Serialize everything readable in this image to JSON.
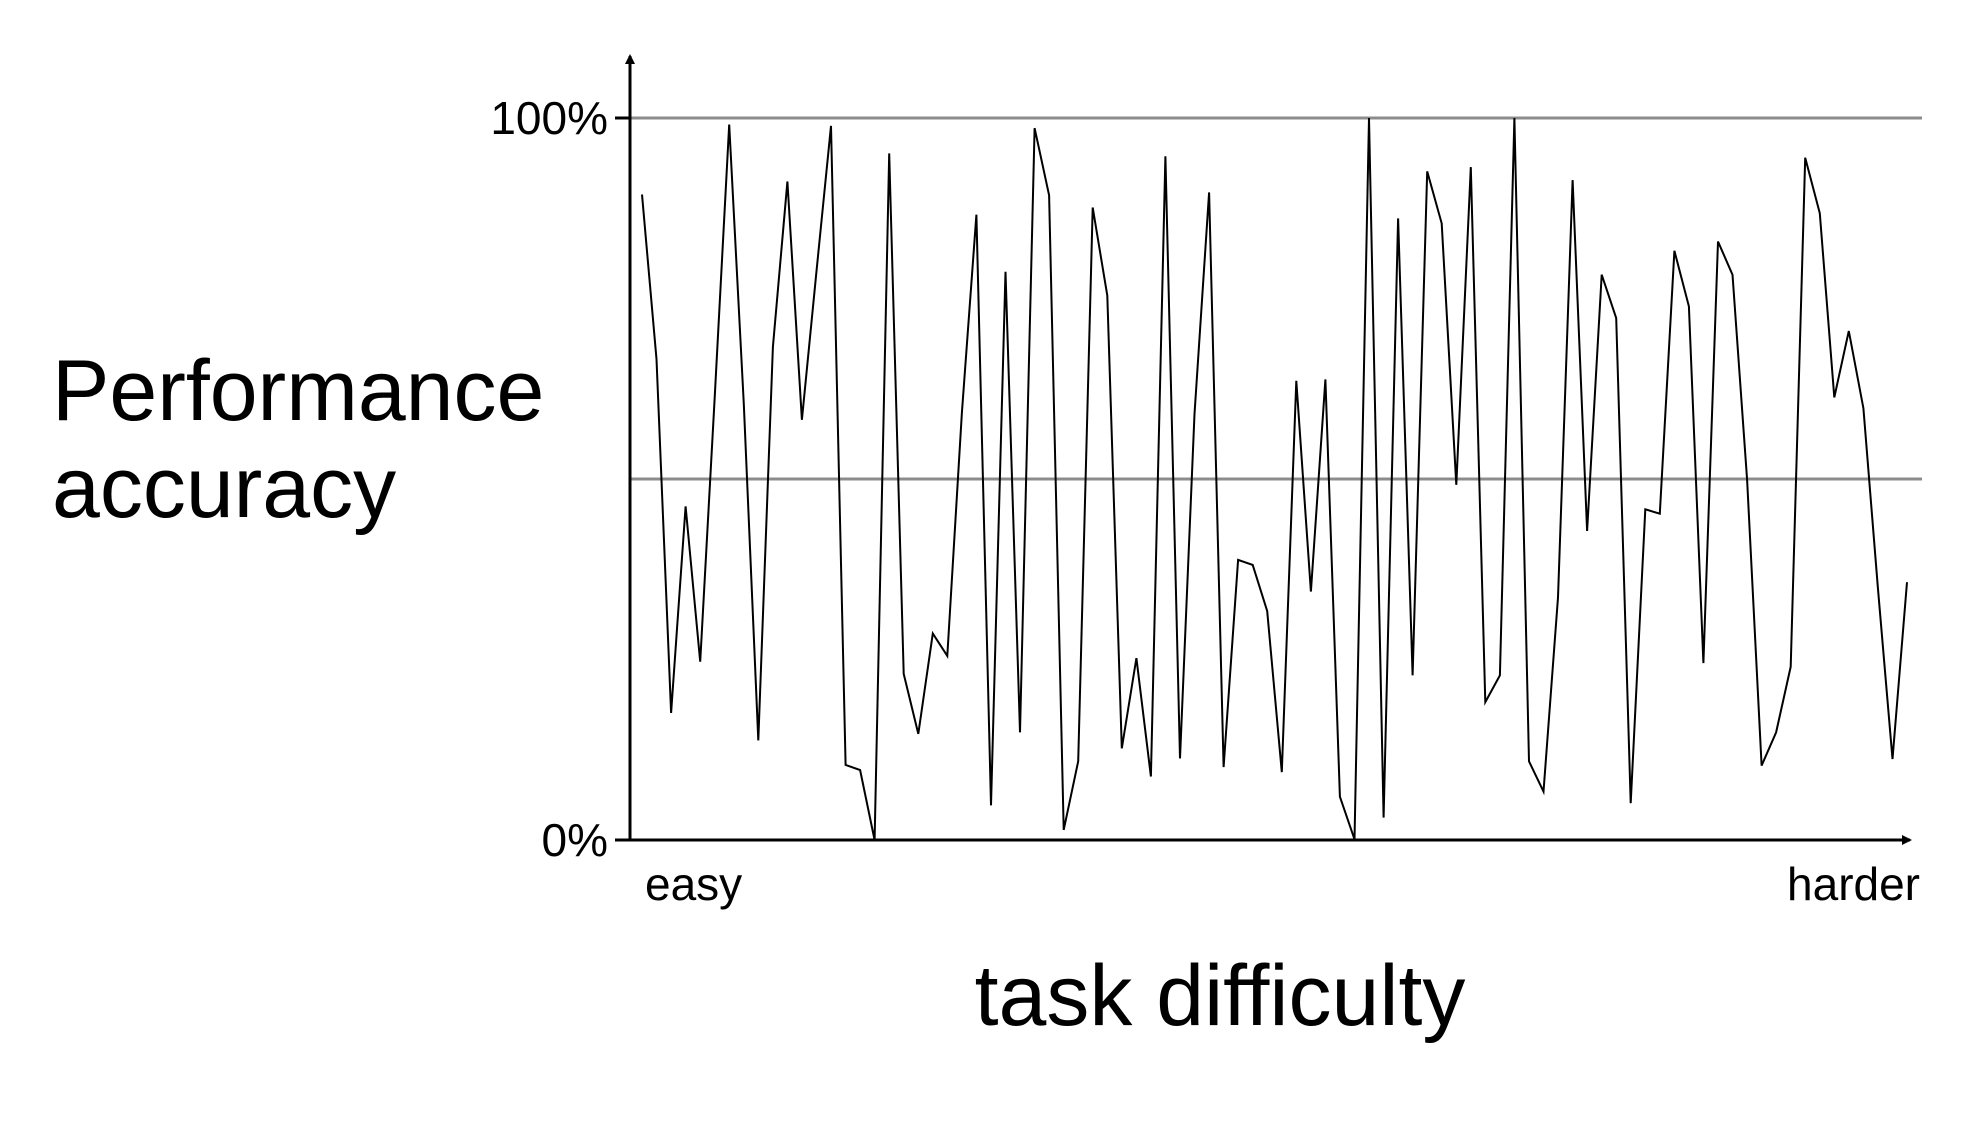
{
  "chart_data": {
    "type": "line",
    "title": "",
    "xlabel": "task difficulty",
    "ylabel_lines": [
      "Performance",
      "accuracy"
    ],
    "x_start_label": "easy",
    "x_end_label": "harder",
    "y_ticks": [
      {
        "value": 0,
        "label": "0%"
      },
      {
        "value": 100,
        "label": "100%"
      }
    ],
    "gridlines": [
      50,
      100
    ],
    "ylim": [
      0,
      100
    ],
    "grid_color": "#8c8c8c",
    "line_color": "#000000",
    "series": [
      {
        "name": "",
        "values": [
          89.4,
          66.6,
          17.6,
          46.2,
          24.7,
          61.3,
          99.1,
          60.4,
          13.8,
          68.3,
          91.2,
          58.2,
          78.8,
          98.9,
          10.4,
          9.7,
          0.0,
          95.1,
          23.0,
          14.7,
          28.6,
          25.5,
          59.2,
          86.6,
          4.8,
          78.7,
          14.9,
          98.6,
          89.3,
          1.4,
          10.9,
          87.6,
          75.4,
          12.7,
          25.2,
          8.8,
          94.7,
          11.3,
          59.0,
          89.7,
          10.1,
          38.8,
          38.1,
          31.7,
          9.4,
          63.6,
          34.4,
          63.8,
          6.0,
          0.1,
          100.0,
          3.1,
          86.1,
          22.8,
          92.6,
          85.4,
          49.2,
          93.2,
          19.1,
          22.8,
          100.0,
          10.9,
          6.7,
          33.6,
          91.4,
          42.8,
          78.3,
          72.3,
          5.1,
          45.8,
          45.2,
          81.6,
          73.9,
          24.5,
          82.9,
          78.3,
          49.9,
          10.3,
          14.9,
          24.0,
          94.5,
          86.8,
          61.3,
          70.5,
          59.8,
          34.9,
          11.2,
          35.7
        ]
      }
    ]
  }
}
